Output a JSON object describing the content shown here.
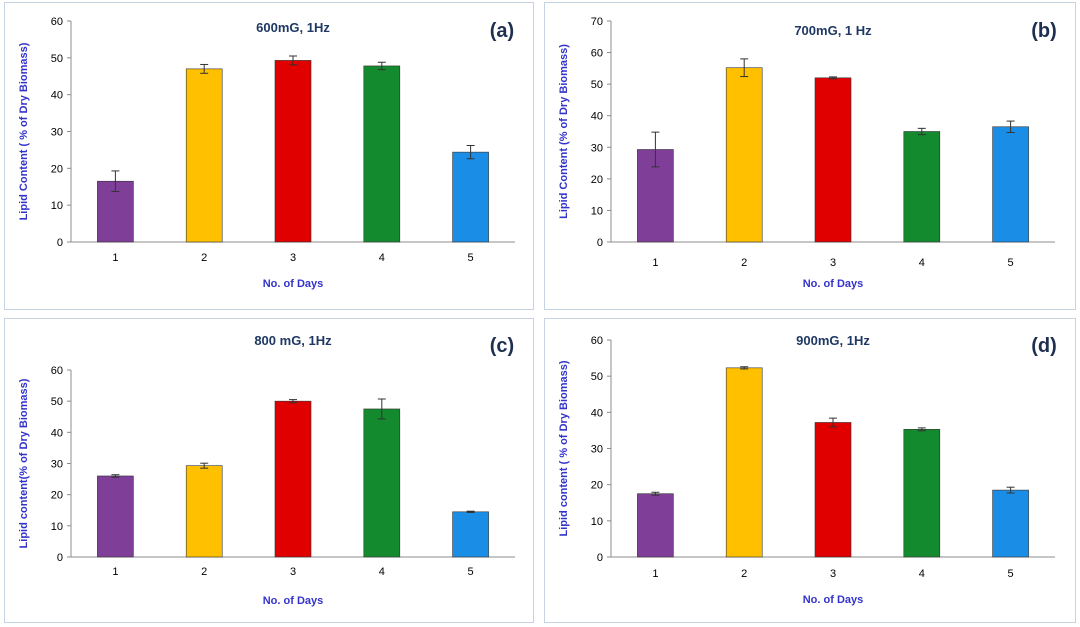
{
  "colors": {
    "bar_colors": [
      "#7f3f98",
      "#ffc000",
      "#e00000",
      "#148a2e",
      "#1a8ee6"
    ],
    "error_bar": "#333333"
  },
  "chart_data": [
    {
      "id": "a",
      "type": "bar",
      "label": "(a)",
      "title": "600mG, 1Hz",
      "categories": [
        "1",
        "2",
        "3",
        "4",
        "5"
      ],
      "values": [
        16.5,
        47,
        49.3,
        47.8,
        24.4
      ],
      "errors": [
        2.8,
        1.2,
        1.2,
        1.0,
        1.8
      ],
      "xlabel": "No. of Days",
      "ylabel": "Lipid Content ( % of Dry Biomass)",
      "ylim": [
        0,
        60
      ],
      "yticks": [
        "0",
        "10",
        "20",
        "30",
        "40",
        "50",
        "60"
      ]
    },
    {
      "id": "b",
      "type": "bar",
      "label": "(b)",
      "title": "700mG, 1 Hz",
      "categories": [
        "1",
        "2",
        "3",
        "4",
        "5"
      ],
      "values": [
        29.3,
        55.2,
        52,
        35,
        36.5
      ],
      "errors": [
        5.5,
        2.8,
        0.3,
        1.0,
        1.8
      ],
      "xlabel": "No. of Days",
      "ylabel": "Lipid Content (% of  Dry Biomass)",
      "ylim": [
        0,
        70
      ],
      "yticks": [
        "0",
        "10",
        "20",
        "30",
        "40",
        "50",
        "60",
        "70"
      ]
    },
    {
      "id": "c",
      "type": "bar",
      "label": "(c)",
      "title": "800 mG, 1Hz",
      "categories": [
        "1",
        "2",
        "3",
        "4",
        "5"
      ],
      "values": [
        26,
        29.3,
        50,
        47.5,
        14.5
      ],
      "errors": [
        0.4,
        0.8,
        0.5,
        3.2,
        0.2
      ],
      "xlabel": "No. of Days",
      "ylabel": "Lipid content(% of Dry Biomass)",
      "ylim": [
        0,
        60
      ],
      "yticks": [
        "0",
        "10",
        "20",
        "30",
        "40",
        "50",
        "60"
      ]
    },
    {
      "id": "d",
      "type": "bar",
      "label": "(d)",
      "title": "900mG, 1Hz",
      "categories": [
        "1",
        "2",
        "3",
        "4",
        "5"
      ],
      "values": [
        17.5,
        52.3,
        37.2,
        35.3,
        18.5
      ],
      "errors": [
        0.4,
        0.3,
        1.2,
        0.4,
        0.8
      ],
      "xlabel": "No. of Days",
      "ylabel": "Lipid content ( % of Dry Biomass)",
      "ylim": [
        0,
        60
      ],
      "yticks": [
        "0",
        "10",
        "20",
        "30",
        "40",
        "50",
        "60"
      ]
    }
  ]
}
